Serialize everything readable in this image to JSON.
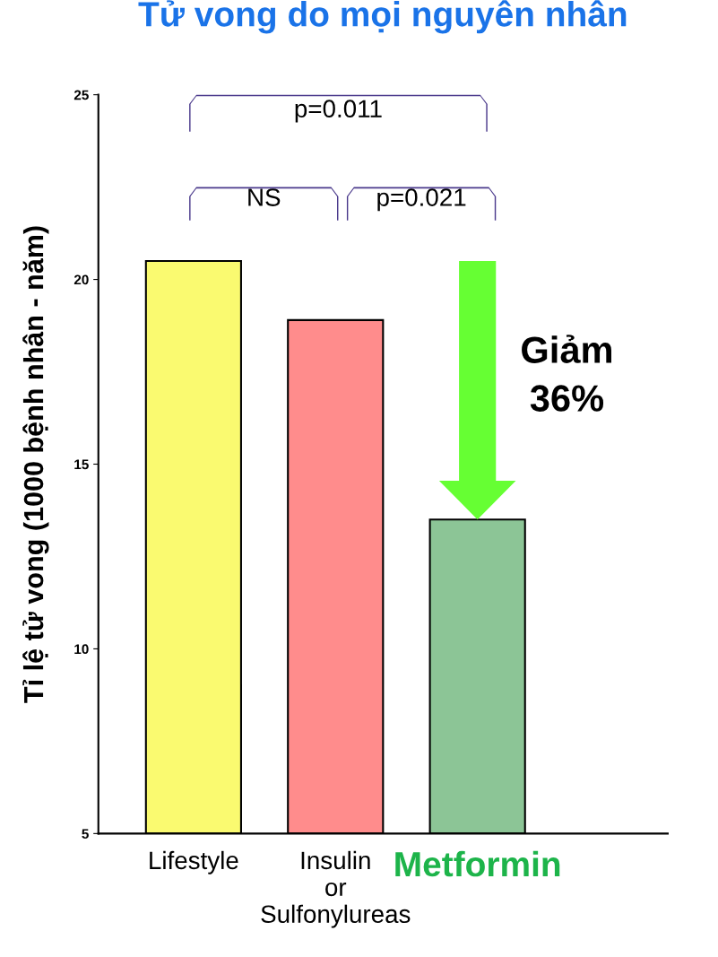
{
  "chart_data": {
    "type": "bar",
    "title": "Tử vong do mọi nguyên nhân",
    "ylabel": "Tỉ lệ tử vong (1000 bệnh nhân - năm)",
    "categories": [
      "Lifestyle",
      "Insulin\nor\nSulfonylureas",
      "Metformin"
    ],
    "values": [
      20.5,
      18.9,
      13.5
    ],
    "colors": [
      "#fafa70",
      "#ff8c8c",
      "#8cc596"
    ],
    "ylim": [
      5,
      25
    ],
    "yticks": [
      5,
      10,
      15,
      20,
      25
    ],
    "grid": false,
    "annotations": [
      "p=0.011",
      "NS",
      "p=0.021",
      "Giảm\n36%"
    ]
  }
}
